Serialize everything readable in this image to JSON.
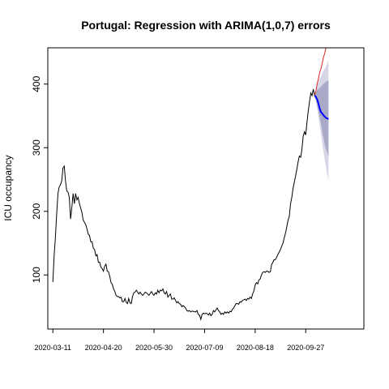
{
  "chart_data": {
    "type": "line",
    "title": "Portugal: Regression with ARIMA(1,0,7) errors",
    "xlabel": "",
    "ylabel": "ICU occupancy",
    "x_tick_labels": [
      "2020-03-11",
      "2020-04-20",
      "2020-05-30",
      "2020-07-09",
      "2020-08-18",
      "2020-09-27"
    ],
    "y_ticks": [
      100,
      200,
      300,
      400
    ],
    "xlim_days": [
      -4,
      246
    ],
    "ylim": [
      15,
      457
    ],
    "grid": false,
    "legend": "none",
    "colors": {
      "observed": "#000000",
      "actual": "#d62728",
      "forecast": "#0000ff",
      "band95": "#d6d6e6",
      "band80": "#a9a9c8"
    },
    "series": [
      {
        "role": "observed",
        "points": [
          [
            0,
            89
          ],
          [
            1,
            130
          ],
          [
            2,
            160
          ],
          [
            3,
            195
          ],
          [
            4,
            228
          ],
          [
            5,
            238
          ],
          [
            6,
            242
          ],
          [
            7,
            248
          ],
          [
            8,
            268
          ],
          [
            9,
            271
          ],
          [
            10,
            248
          ],
          [
            11,
            232
          ],
          [
            12,
            230
          ],
          [
            13,
            222
          ],
          [
            14,
            188
          ],
          [
            15,
            205
          ],
          [
            16,
            228
          ],
          [
            17,
            212
          ],
          [
            18,
            228
          ],
          [
            19,
            218
          ],
          [
            20,
            222
          ],
          [
            21,
            212
          ],
          [
            22,
            205
          ],
          [
            23,
            198
          ],
          [
            24,
            186
          ],
          [
            25,
            183
          ],
          [
            26,
            179
          ],
          [
            27,
            172
          ],
          [
            28,
            164
          ],
          [
            29,
            162
          ],
          [
            30,
            152
          ],
          [
            31,
            152
          ],
          [
            32,
            142
          ],
          [
            33,
            140
          ],
          [
            34,
            130
          ],
          [
            35,
            132
          ],
          [
            36,
            120
          ],
          [
            37,
            120
          ],
          [
            38,
            112
          ],
          [
            39,
            110
          ],
          [
            40,
            106
          ],
          [
            41,
            114
          ],
          [
            42,
            117
          ],
          [
            43,
            106
          ],
          [
            44,
            105
          ],
          [
            45,
            98
          ],
          [
            46,
            88
          ],
          [
            47,
            85
          ],
          [
            48,
            78
          ],
          [
            49,
            74
          ],
          [
            50,
            68
          ],
          [
            51,
            66
          ],
          [
            52,
            66
          ],
          [
            53,
            64
          ],
          [
            54,
            65
          ],
          [
            55,
            58
          ],
          [
            56,
            58
          ],
          [
            57,
            63
          ],
          [
            58,
            57
          ],
          [
            59,
            55
          ],
          [
            60,
            63
          ],
          [
            61,
            56
          ],
          [
            62,
            55
          ],
          [
            63,
            66
          ],
          [
            64,
            72
          ],
          [
            65,
            73
          ],
          [
            66,
            76
          ],
          [
            67,
            73
          ],
          [
            68,
            70
          ],
          [
            69,
            73
          ],
          [
            70,
            70
          ],
          [
            71,
            68
          ],
          [
            72,
            70
          ],
          [
            73,
            73
          ],
          [
            74,
            72
          ],
          [
            75,
            70
          ],
          [
            76,
            68
          ],
          [
            77,
            71
          ],
          [
            78,
            74
          ],
          [
            79,
            70
          ],
          [
            80,
            68
          ],
          [
            81,
            72
          ],
          [
            82,
            70
          ],
          [
            83,
            76
          ],
          [
            84,
            72
          ],
          [
            85,
            76
          ],
          [
            86,
            75
          ],
          [
            87,
            78
          ],
          [
            88,
            72
          ],
          [
            89,
            70
          ],
          [
            90,
            74
          ],
          [
            91,
            65
          ],
          [
            92,
            68
          ],
          [
            93,
            70
          ],
          [
            94,
            62
          ],
          [
            95,
            62
          ],
          [
            96,
            64
          ],
          [
            97,
            60
          ],
          [
            98,
            56
          ],
          [
            99,
            58
          ],
          [
            100,
            55
          ],
          [
            101,
            54
          ],
          [
            102,
            50
          ],
          [
            103,
            52
          ],
          [
            104,
            50
          ],
          [
            105,
            48
          ],
          [
            106,
            44
          ],
          [
            107,
            43
          ],
          [
            108,
            44
          ],
          [
            109,
            42
          ],
          [
            110,
            43
          ],
          [
            111,
            43
          ],
          [
            112,
            42
          ],
          [
            113,
            42
          ],
          [
            114,
            44
          ],
          [
            115,
            38
          ],
          [
            116,
            37
          ],
          [
            117,
            30
          ],
          [
            118,
            38
          ],
          [
            119,
            40
          ],
          [
            120,
            39
          ],
          [
            121,
            40
          ],
          [
            122,
            39
          ],
          [
            123,
            37
          ],
          [
            124,
            40
          ],
          [
            125,
            36
          ],
          [
            126,
            38
          ],
          [
            127,
            44
          ],
          [
            128,
            42
          ],
          [
            129,
            45
          ],
          [
            130,
            48
          ],
          [
            131,
            44
          ],
          [
            132,
            42
          ],
          [
            133,
            38
          ],
          [
            134,
            40
          ],
          [
            135,
            38
          ],
          [
            136,
            42
          ],
          [
            137,
            40
          ],
          [
            138,
            42
          ],
          [
            139,
            40
          ],
          [
            140,
            43
          ],
          [
            141,
            42
          ],
          [
            142,
            46
          ],
          [
            143,
            48
          ],
          [
            144,
            52
          ],
          [
            145,
            55
          ],
          [
            146,
            55
          ],
          [
            147,
            54
          ],
          [
            148,
            58
          ],
          [
            149,
            57
          ],
          [
            150,
            60
          ],
          [
            151,
            61
          ],
          [
            152,
            62
          ],
          [
            153,
            60
          ],
          [
            154,
            63
          ],
          [
            155,
            62
          ],
          [
            156,
            65
          ],
          [
            157,
            63
          ],
          [
            158,
            70
          ],
          [
            159,
            75
          ],
          [
            160,
            84
          ],
          [
            161,
            88
          ],
          [
            162,
            86
          ],
          [
            163,
            92
          ],
          [
            164,
            94
          ],
          [
            165,
            100
          ],
          [
            166,
            104
          ],
          [
            167,
            105
          ],
          [
            168,
            104
          ],
          [
            169,
            106
          ],
          [
            170,
            106
          ],
          [
            171,
            104
          ],
          [
            172,
            105
          ],
          [
            173,
            116
          ],
          [
            174,
            120
          ],
          [
            175,
            124
          ],
          [
            176,
            124
          ],
          [
            177,
            128
          ],
          [
            178,
            132
          ],
          [
            179,
            136
          ],
          [
            180,
            140
          ],
          [
            181,
            145
          ],
          [
            182,
            150
          ],
          [
            183,
            158
          ],
          [
            184,
            166
          ],
          [
            185,
            175
          ],
          [
            186,
            186
          ],
          [
            187,
            192
          ],
          [
            188,
            212
          ],
          [
            189,
            222
          ],
          [
            190,
            236
          ],
          [
            191,
            246
          ],
          [
            192,
            256
          ],
          [
            193,
            266
          ],
          [
            194,
            278
          ],
          [
            195,
            287
          ],
          [
            196,
            285
          ],
          [
            197,
            298
          ],
          [
            198,
            318
          ],
          [
            199,
            325
          ],
          [
            200,
            320
          ],
          [
            201,
            340
          ],
          [
            202,
            358
          ],
          [
            203,
            372
          ],
          [
            204,
            386
          ],
          [
            205,
            382
          ],
          [
            206,
            392
          ],
          [
            207,
            382
          ]
        ]
      },
      {
        "role": "actual",
        "points": [
          [
            207,
            382
          ],
          [
            208,
            388
          ],
          [
            209,
            400
          ],
          [
            210,
            408
          ],
          [
            211,
            418
          ],
          [
            212,
            424
          ],
          [
            213,
            432
          ],
          [
            214,
            442
          ],
          [
            215,
            448
          ],
          [
            216,
            457
          ]
        ]
      },
      {
        "role": "forecast",
        "points": [
          [
            207,
            382
          ],
          [
            208,
            380
          ],
          [
            209,
            376
          ],
          [
            210,
            370
          ],
          [
            211,
            362
          ],
          [
            212,
            356
          ],
          [
            213,
            354
          ],
          [
            214,
            351
          ],
          [
            215,
            349
          ],
          [
            216,
            347
          ],
          [
            217,
            346
          ],
          [
            218,
            345
          ]
        ]
      },
      {
        "role": "upper95",
        "points": [
          [
            207,
            382
          ],
          [
            208,
            390
          ],
          [
            209,
            398
          ],
          [
            210,
            404
          ],
          [
            211,
            408
          ],
          [
            212,
            412
          ],
          [
            213,
            416
          ],
          [
            214,
            420
          ],
          [
            215,
            424
          ],
          [
            216,
            428
          ],
          [
            217,
            432
          ],
          [
            218,
            438
          ]
        ]
      },
      {
        "role": "lower95",
        "points": [
          [
            207,
            382
          ],
          [
            208,
            372
          ],
          [
            209,
            362
          ],
          [
            210,
            350
          ],
          [
            211,
            336
          ],
          [
            212,
            322
          ],
          [
            213,
            308
          ],
          [
            214,
            294
          ],
          [
            215,
            282
          ],
          [
            216,
            270
          ],
          [
            217,
            258
          ],
          [
            218,
            248
          ]
        ]
      },
      {
        "role": "upper80",
        "points": [
          [
            207,
            382
          ],
          [
            208,
            386
          ],
          [
            209,
            390
          ],
          [
            210,
            392
          ],
          [
            211,
            394
          ],
          [
            212,
            396
          ],
          [
            213,
            398
          ],
          [
            214,
            400
          ],
          [
            215,
            402
          ],
          [
            216,
            404
          ],
          [
            217,
            405
          ],
          [
            218,
            406
          ]
        ]
      },
      {
        "role": "lower80",
        "points": [
          [
            207,
            382
          ],
          [
            208,
            376
          ],
          [
            209,
            368
          ],
          [
            210,
            358
          ],
          [
            211,
            348
          ],
          [
            212,
            338
          ],
          [
            213,
            326
          ],
          [
            214,
            316
          ],
          [
            215,
            306
          ],
          [
            216,
            298
          ],
          [
            217,
            292
          ],
          [
            218,
            286
          ]
        ]
      }
    ]
  }
}
